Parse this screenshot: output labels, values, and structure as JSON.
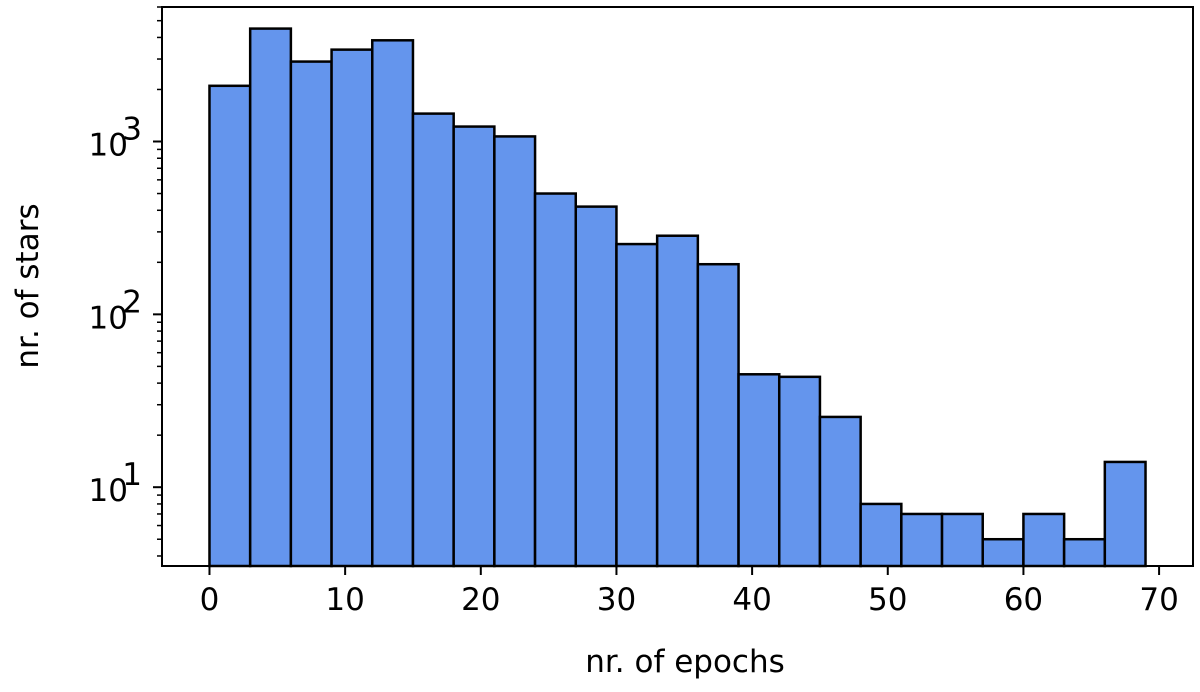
{
  "chart_data": {
    "type": "bar",
    "histogram": true,
    "bin_edges": [
      0,
      3,
      6,
      9,
      12,
      15,
      18,
      21,
      24,
      27,
      30,
      33,
      36,
      39,
      42,
      45,
      48,
      51,
      54,
      57,
      60,
      63,
      66,
      69
    ],
    "values": [
      2100,
      4500,
      2900,
      3400,
      3850,
      1450,
      1220,
      1070,
      500,
      420,
      255,
      285,
      195,
      45,
      43.5,
      25.5,
      8,
      7,
      7,
      5,
      7,
      5,
      14
    ],
    "xlabel": "nr. of epochs",
    "ylabel": "nr. of stars",
    "xlim": [
      -3.5,
      72.5
    ],
    "ylim": [
      3.5,
      6000
    ],
    "yscale": "log",
    "x_ticks": [
      0,
      10,
      20,
      30,
      40,
      50,
      60,
      70
    ],
    "x_tick_labels": [
      "0",
      "10",
      "20",
      "30",
      "40",
      "50",
      "60",
      "70"
    ],
    "y_major_ticks": [
      10,
      100,
      1000
    ],
    "y_tick_labels": [
      "10",
      "10",
      "10"
    ],
    "y_tick_exponents": [
      "1",
      "2",
      "3"
    ],
    "grid": false,
    "bar_color": "#6495ED",
    "edge_color": "#000000"
  }
}
